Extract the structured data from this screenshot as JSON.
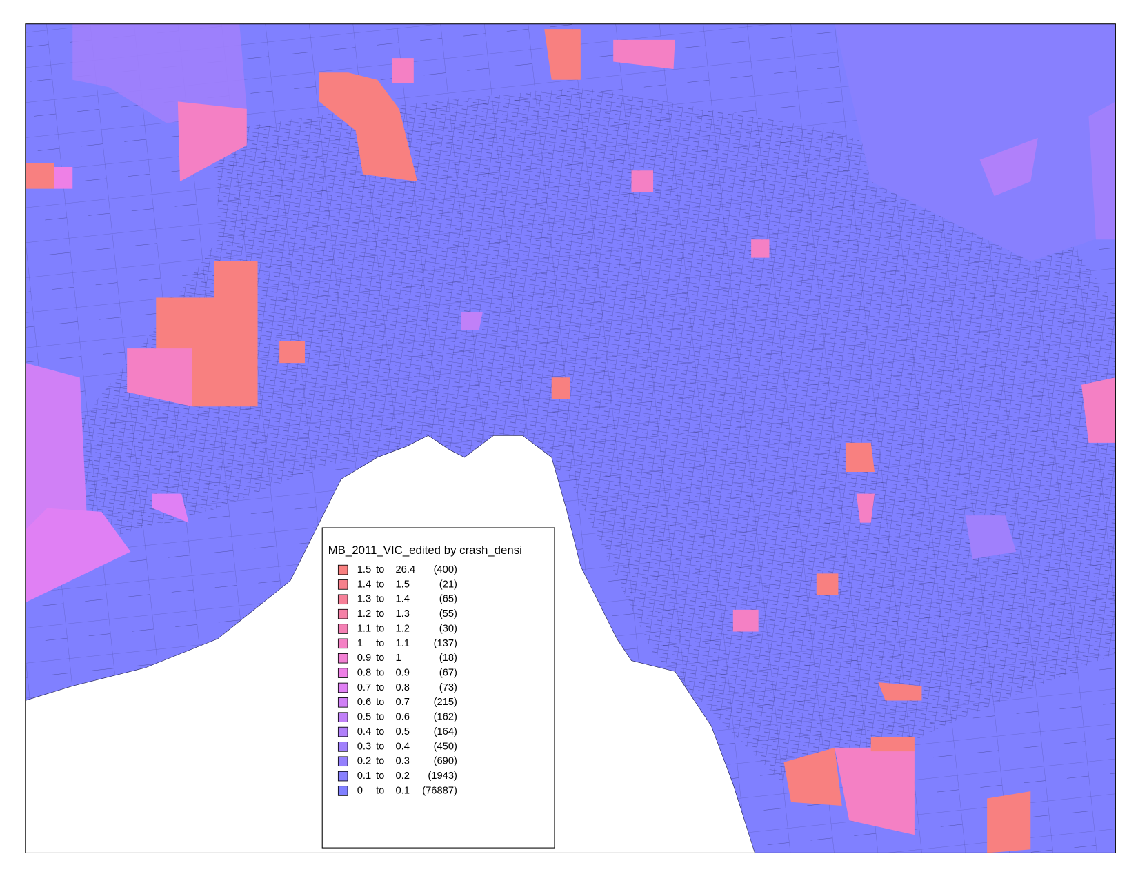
{
  "legend": {
    "title": "MB_2011_VIC_edited by crash_densi",
    "connector": "to",
    "entries": [
      {
        "from": "1.5",
        "to": "26.4",
        "count": "(400)",
        "color": "#f88080"
      },
      {
        "from": "1.4",
        "to": "1.5",
        "count": "(21)",
        "color": "#f7808c"
      },
      {
        "from": "1.3",
        "to": "1.4",
        "count": "(65)",
        "color": "#f68098"
      },
      {
        "from": "1.2",
        "to": "1.3",
        "count": "(55)",
        "color": "#f580a6"
      },
      {
        "from": "1.1",
        "to": "1.2",
        "count": "(30)",
        "color": "#f480b4"
      },
      {
        "from": "1",
        "to": "1.1",
        "count": "(137)",
        "color": "#f480c4"
      },
      {
        "from": "0.9",
        "to": "1",
        "count": "(18)",
        "color": "#f280d4"
      },
      {
        "from": "0.8",
        "to": "0.9",
        "count": "(67)",
        "color": "#ee80e6"
      },
      {
        "from": "0.7",
        "to": "0.8",
        "count": "(73)",
        "color": "#e080f4"
      },
      {
        "from": "0.6",
        "to": "0.7",
        "count": "(215)",
        "color": "#d080f6"
      },
      {
        "from": "0.5",
        "to": "0.6",
        "count": "(162)",
        "color": "#c080f8"
      },
      {
        "from": "0.4",
        "to": "0.5",
        "count": "(164)",
        "color": "#b080fa"
      },
      {
        "from": "0.3",
        "to": "0.4",
        "count": "(450)",
        "color": "#a080fc"
      },
      {
        "from": "0.2",
        "to": "0.3",
        "count": "(690)",
        "color": "#9480fd"
      },
      {
        "from": "0.1",
        "to": "0.2",
        "count": "(1943)",
        "color": "#8880fe"
      },
      {
        "from": "0",
        "to": "0.1",
        "count": "(76887)",
        "color": "#8080ff"
      }
    ]
  }
}
